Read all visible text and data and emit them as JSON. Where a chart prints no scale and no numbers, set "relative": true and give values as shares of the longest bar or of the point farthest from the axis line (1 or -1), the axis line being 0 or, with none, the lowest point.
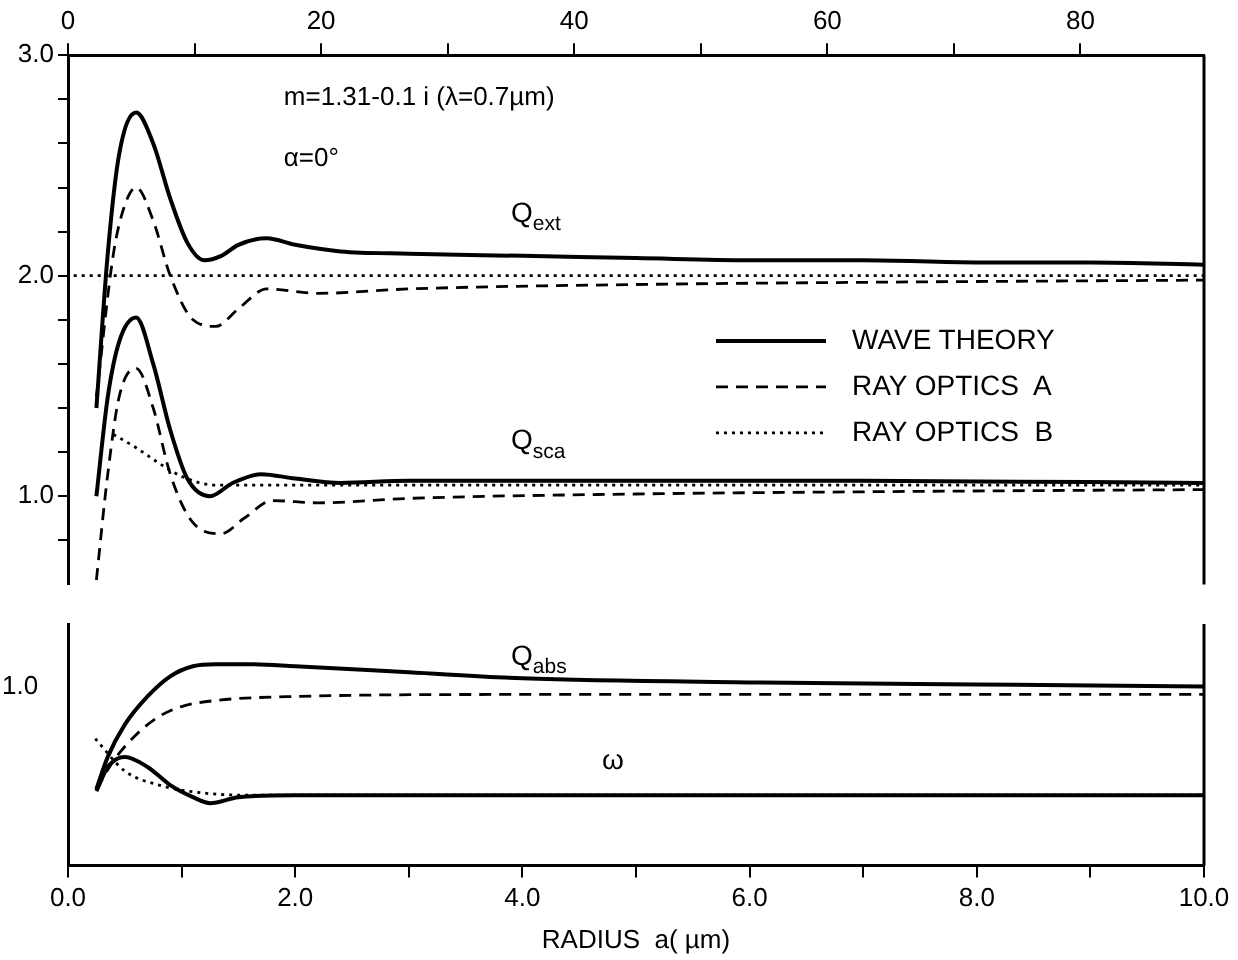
{
  "chart_data": [
    {
      "type": "line",
      "xlim": [
        0,
        10
      ],
      "x2lim": [
        0,
        89.76
      ],
      "x2ticks": [
        0,
        {
          "value": 10,
          "label": null
        },
        20,
        {
          "value": 30,
          "label": null
        },
        40,
        {
          "value": 50,
          "label": null
        },
        60,
        {
          "value": 70,
          "label": null
        },
        80
      ],
      "ylim": [
        0.6,
        3.0
      ],
      "yticks": [
        {
          "value": 0.8,
          "label": null
        },
        {
          "value": 1.0,
          "label": "1.0"
        },
        {
          "value": 1.2,
          "label": null
        },
        {
          "value": 1.4,
          "label": null
        },
        {
          "value": 1.6,
          "label": null
        },
        {
          "value": 1.8,
          "label": null
        },
        {
          "value": 2.0,
          "label": "2.0"
        },
        {
          "value": 2.2,
          "label": null
        },
        {
          "value": 2.4,
          "label": null
        },
        {
          "value": 2.6,
          "label": null
        },
        {
          "value": 2.8,
          "label": null
        },
        {
          "value": 3.0,
          "label": "3.0"
        }
      ],
      "grid": false,
      "legend": "right",
      "annotations": [
        "m=1.31-0.1 i (λ=0.7µm)",
        "α=0°",
        "Q$_{ext}$",
        "Q$_{sca}$"
      ],
      "series": [
        {
          "name": "WAVE THEORY",
          "color": "#000000",
          "line_style": "solid",
          "x": [
            0.25,
            0.35,
            0.45,
            0.6,
            0.75,
            0.9,
            1.05,
            1.2,
            1.35,
            1.5,
            1.75,
            2.0,
            2.4,
            3,
            4,
            5,
            6,
            7,
            8,
            9,
            10
          ],
          "values": [
            1.4,
            2.1,
            2.55,
            2.74,
            2.6,
            2.35,
            2.15,
            2.07,
            2.09,
            2.14,
            2.17,
            2.14,
            2.11,
            2.1,
            2.09,
            2.08,
            2.07,
            2.07,
            2.06,
            2.06,
            2.05
          ]
        },
        {
          "name": "RAY OPTICS  A",
          "color": "#000000",
          "line_style": "dashed",
          "x": [
            0.25,
            0.4,
            0.5,
            0.6,
            0.75,
            0.9,
            1.1,
            1.3,
            1.5,
            1.75,
            2.2,
            3,
            5,
            7,
            10
          ],
          "values": [
            1.45,
            2.1,
            2.32,
            2.4,
            2.25,
            2.0,
            1.8,
            1.77,
            1.85,
            1.94,
            1.92,
            1.94,
            1.96,
            1.97,
            1.98
          ]
        },
        {
          "name": "RAY OPTICS  B",
          "color": "#000000",
          "line_style": "dotted",
          "x": [
            0.05,
            10
          ],
          "values": [
            2.0,
            2.0
          ]
        },
        {
          "color": "#000000",
          "line_style": "solid",
          "x": [
            0.25,
            0.35,
            0.45,
            0.6,
            0.75,
            0.9,
            1.05,
            1.25,
            1.45,
            1.7,
            2.0,
            2.4,
            3,
            5,
            7,
            10
          ],
          "values": [
            1.0,
            1.45,
            1.7,
            1.81,
            1.6,
            1.3,
            1.08,
            1.0,
            1.06,
            1.1,
            1.08,
            1.06,
            1.07,
            1.07,
            1.07,
            1.06
          ]
        },
        {
          "color": "#000000",
          "line_style": "dashed",
          "x": [
            0.25,
            0.35,
            0.45,
            0.6,
            0.75,
            0.9,
            1.1,
            1.35,
            1.55,
            1.8,
            2.2,
            3,
            5,
            7,
            10
          ],
          "values": [
            0.62,
            1.1,
            1.45,
            1.58,
            1.4,
            1.1,
            0.88,
            0.83,
            0.9,
            0.98,
            0.97,
            0.99,
            1.01,
            1.02,
            1.03
          ]
        },
        {
          "color": "#000000",
          "line_style": "dotted",
          "x": [
            0.4,
            0.6,
            0.8,
            1.0,
            1.3,
            10
          ],
          "values": [
            1.28,
            1.22,
            1.15,
            1.09,
            1.05,
            1.05
          ]
        }
      ]
    },
    {
      "type": "line",
      "xlim": [
        0,
        10
      ],
      "xticks": [
        {
          "value": 0,
          "label": "0.0"
        },
        {
          "value": 1,
          "label": null
        },
        {
          "value": 2,
          "label": "2.0"
        },
        {
          "value": 3,
          "label": null
        },
        {
          "value": 4,
          "label": "4.0"
        },
        {
          "value": 5,
          "label": null
        },
        {
          "value": 6,
          "label": "6.0"
        },
        {
          "value": 7,
          "label": null
        },
        {
          "value": 8,
          "label": "8.0"
        },
        {
          "value": 9,
          "label": null
        },
        {
          "value": 10,
          "label": "10.0"
        }
      ],
      "xlabel": "RADIUS  a( µm)",
      "relative": true,
      "grid": false,
      "annotations": [
        "Q$_{abs}$",
        "ω",
        "1.0"
      ],
      "series": [
        {
          "color": "#000000",
          "line_style": "solid",
          "x": [
            0.25,
            0.35,
            0.5,
            0.7,
            0.9,
            1.1,
            1.3,
            1.6,
            2,
            3,
            4,
            6,
            8,
            10
          ],
          "values": [
            0.38,
            0.54,
            0.7,
            0.84,
            0.94,
            0.99,
            1,
            1,
            0.99,
            0.96,
            0.93,
            0.91,
            0.9,
            0.89
          ]
        },
        {
          "color": "#000000",
          "line_style": "dashed",
          "x": [
            0.25,
            0.4,
            0.6,
            0.8,
            1.0,
            1.3,
            2,
            4,
            10
          ],
          "values": [
            0.38,
            0.52,
            0.65,
            0.74,
            0.79,
            0.82,
            0.84,
            0.85,
            0.85
          ]
        },
        {
          "color": "#000000",
          "line_style": "solid",
          "x": [
            0.25,
            0.35,
            0.5,
            0.7,
            0.9,
            1.1,
            1.25,
            1.5,
            2,
            4,
            10
          ],
          "values": [
            0.37,
            0.49,
            0.54,
            0.49,
            0.4,
            0.34,
            0.31,
            0.34,
            0.35,
            0.35,
            0.35
          ]
        },
        {
          "color": "#000000",
          "line_style": "dotted",
          "x": [
            0.24,
            0.5,
            0.8,
            1.2,
            1.6,
            10
          ],
          "values": [
            0.63,
            0.47,
            0.4,
            0.36,
            0.35,
            0.35
          ]
        }
      ]
    }
  ]
}
